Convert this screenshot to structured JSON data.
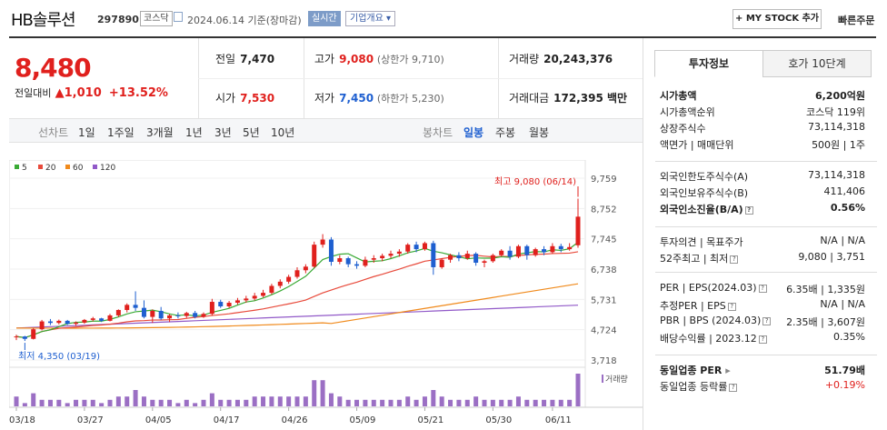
{
  "header": {
    "name": "HB솔루션",
    "code": "297890",
    "market": "코스닥",
    "date_text": "2024.06.14 기준(장마감)",
    "live": "실시간",
    "corp_info": "기업개요",
    "mystock": "+ MY STOCK 추가",
    "quick_order": "빠른주문"
  },
  "quote": {
    "price": "8,480",
    "change_label": "전일대비",
    "change": "1,010",
    "change_pct": "+13.52%",
    "prev_close_label": "전일",
    "prev_close": "7,470",
    "open_label": "시가",
    "open": "7,530",
    "high_label": "고가",
    "high": "9,080",
    "upper_limit": "(상한가 9,710)",
    "low_label": "저가",
    "low": "7,450",
    "lower_limit": "(하한가 5,230)",
    "volume_label": "거래량",
    "volume": "20,243,376",
    "amount_label": "거래대금",
    "amount": "172,395 백만"
  },
  "period_bar": {
    "line_label": "선차트",
    "line_items": [
      "1일",
      "1주일",
      "3개월",
      "1년",
      "3년",
      "5년",
      "10년"
    ],
    "candle_label": "봉차트",
    "candle_items": [
      "일봉",
      "주봉",
      "월봉"
    ],
    "candle_selected": "일봉"
  },
  "colors": {
    "up": "#e0201d",
    "down": "#1e5fd0",
    "ma5": "#3aaa35",
    "ma20": "#e84a3b",
    "ma60": "#f08a1c",
    "ma120": "#9159c8",
    "volume": "#9b6fc4"
  },
  "chart_data": {
    "type": "candlestick",
    "legend": [
      "5",
      "20",
      "60",
      "120"
    ],
    "y_ticks": [
      "9,759",
      "8,752",
      "7,745",
      "6,738",
      "5,731",
      "4,724",
      "3,718"
    ],
    "y_range": [
      3718,
      9759
    ],
    "x_labels": [
      "03/18",
      "03/27",
      "04/05",
      "04/17",
      "04/26",
      "05/09",
      "05/21",
      "05/30",
      "06/11"
    ],
    "high_annotation": "최고 9,080 (06/14)",
    "low_annotation": "최저 4,350 (03/19)",
    "volume_label": "거래량",
    "candles": [
      [
        4500,
        4560,
        4380,
        4500
      ],
      [
        4500,
        4520,
        4350,
        4420
      ],
      [
        4420,
        4780,
        4400,
        4740
      ],
      [
        4740,
        5050,
        4700,
        5000
      ],
      [
        5000,
        5080,
        4880,
        4950
      ],
      [
        4950,
        5060,
        4900,
        5020
      ],
      [
        5020,
        5050,
        4880,
        4920
      ],
      [
        4920,
        5000,
        4850,
        4960
      ],
      [
        4960,
        5080,
        4920,
        5050
      ],
      [
        5050,
        5150,
        5000,
        5100
      ],
      [
        5100,
        5120,
        4980,
        5020
      ],
      [
        5020,
        5250,
        5000,
        5200
      ],
      [
        5200,
        5400,
        5150,
        5380
      ],
      [
        5380,
        5600,
        5300,
        5550
      ],
      [
        5550,
        6000,
        5350,
        5450
      ],
      [
        5450,
        5700,
        5100,
        5150
      ],
      [
        5150,
        5400,
        4950,
        5350
      ],
      [
        5350,
        5480,
        5050,
        5100
      ],
      [
        5100,
        5250,
        4980,
        5200
      ],
      [
        5200,
        5300,
        5100,
        5180
      ],
      [
        5180,
        5320,
        5120,
        5280
      ],
      [
        5280,
        5350,
        5100,
        5150
      ],
      [
        5150,
        5300,
        5120,
        5250
      ],
      [
        5250,
        5750,
        5200,
        5650
      ],
      [
        5650,
        5720,
        5450,
        5500
      ],
      [
        5500,
        5680,
        5450,
        5620
      ],
      [
        5620,
        5780,
        5560,
        5700
      ],
      [
        5700,
        5850,
        5620,
        5760
      ],
      [
        5760,
        5950,
        5700,
        5850
      ],
      [
        5850,
        6050,
        5800,
        5950
      ],
      [
        5950,
        6250,
        5900,
        6180
      ],
      [
        6180,
        6400,
        6100,
        6320
      ],
      [
        6320,
        6550,
        6250,
        6480
      ],
      [
        6480,
        6800,
        6420,
        6700
      ],
      [
        6700,
        6900,
        6600,
        6820
      ],
      [
        6820,
        7650,
        6780,
        7550
      ],
      [
        7550,
        7900,
        7450,
        7720
      ],
      [
        7720,
        7800,
        6850,
        6980
      ],
      [
        6980,
        7200,
        6900,
        7100
      ],
      [
        7100,
        7150,
        6800,
        6900
      ],
      [
        6900,
        7000,
        6750,
        6850
      ],
      [
        6850,
        7150,
        6800,
        7050
      ],
      [
        7050,
        7200,
        6950,
        7100
      ],
      [
        7100,
        7250,
        7000,
        7180
      ],
      [
        7180,
        7350,
        7100,
        7250
      ],
      [
        7250,
        7400,
        7150,
        7320
      ],
      [
        7320,
        7600,
        7250,
        7550
      ],
      [
        7550,
        7650,
        7300,
        7400
      ],
      [
        7400,
        7650,
        7350,
        7600
      ],
      [
        7600,
        7680,
        6550,
        6800
      ],
      [
        6800,
        7100,
        6750,
        7050
      ],
      [
        7050,
        7250,
        6950,
        7200
      ],
      [
        7200,
        7300,
        7000,
        7100
      ],
      [
        7100,
        7350,
        7050,
        7250
      ],
      [
        7250,
        7300,
        6850,
        6950
      ],
      [
        6950,
        7050,
        6800,
        7000
      ],
      [
        7000,
        7250,
        6950,
        7200
      ],
      [
        7200,
        7400,
        7150,
        7350
      ],
      [
        7350,
        7500,
        7050,
        7150
      ],
      [
        7150,
        7550,
        7100,
        7500
      ],
      [
        7500,
        7550,
        7050,
        7200
      ],
      [
        7200,
        7450,
        7150,
        7400
      ],
      [
        7400,
        7500,
        7200,
        7300
      ],
      [
        7300,
        7600,
        7250,
        7500
      ],
      [
        7500,
        7580,
        7300,
        7400
      ],
      [
        7400,
        7600,
        7350,
        7470
      ],
      [
        7530,
        9080,
        7450,
        8480
      ]
    ],
    "volume": [
      3,
      1,
      4,
      2,
      2,
      2,
      1,
      2,
      2,
      2,
      1,
      2,
      3,
      3,
      5,
      3,
      2,
      2,
      2,
      1,
      2,
      1,
      2,
      4,
      2,
      2,
      2,
      2,
      3,
      3,
      3,
      3,
      3,
      3,
      3,
      8,
      8,
      4,
      3,
      2,
      2,
      2,
      2,
      2,
      2,
      2,
      3,
      2,
      3,
      5,
      3,
      2,
      2,
      2,
      3,
      2,
      2,
      2,
      2,
      3,
      2,
      2,
      2,
      2,
      2,
      2,
      10
    ]
  },
  "right_panel": {
    "tab_active": "투자정보",
    "tab_other": "호가 10단계",
    "rows1": [
      {
        "k": "시가총액",
        "v": "6,200억원",
        "bold": true
      },
      {
        "k": "시가총액순위",
        "v": "코스닥 119위"
      },
      {
        "k": "상장주식수",
        "v": "73,114,318"
      },
      {
        "k": "액면가 | 매매단위",
        "v": "500원 | 1주"
      }
    ],
    "rows2": [
      {
        "k": "외국인한도주식수(A)",
        "v": "73,114,318"
      },
      {
        "k": "외국인보유주식수(B)",
        "v": "411,406"
      },
      {
        "k": "외국인소진율(B/A)",
        "v": "0.56%",
        "bold": true,
        "info": true
      }
    ],
    "rows3": [
      {
        "k": "투자의견 | 목표주가",
        "v": "N/A | N/A"
      },
      {
        "k": "52주최고 | 최저",
        "v": "9,080 | 3,751",
        "info": true
      }
    ],
    "rows4": [
      {
        "k": "PER | EPS(2024.03)",
        "v": "6.35배 | 1,335원",
        "info": true
      },
      {
        "k": "추정PER | EPS",
        "v": "N/A | N/A",
        "info": true
      },
      {
        "k": "PBR | BPS (2024.03)",
        "v": "2.35배 | 3,607원",
        "info": true
      },
      {
        "k": "배당수익률 | 2023.12",
        "v": "0.35%",
        "info": true
      }
    ],
    "rows5": [
      {
        "k": "동일업종 PER",
        "v": "51.79배",
        "bold": true,
        "arrow": true
      },
      {
        "k": "동일업종 등락률",
        "v": "+0.19%",
        "red": true,
        "info": true
      }
    ]
  }
}
